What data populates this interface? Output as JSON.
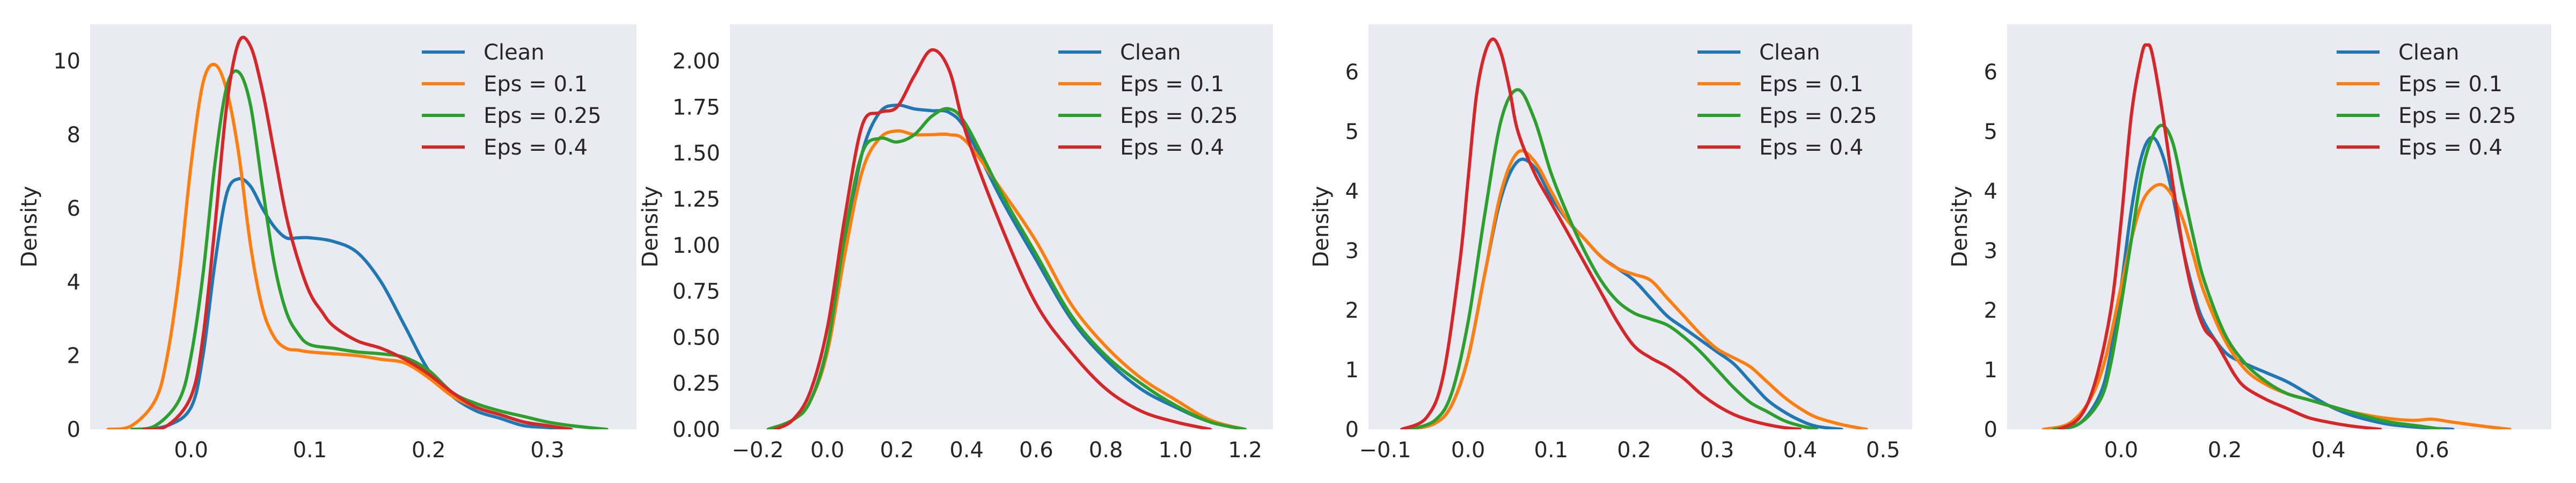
{
  "figure": {
    "background": "#ffffff",
    "axes_facecolor": "#eaeaf2",
    "text_color": "#262626",
    "colors": {
      "Clean": "#1f77b4",
      "Eps = 0.1": "#ff7f0e",
      "Eps = 0.25": "#2ca02c",
      "Eps = 0.4": "#d62728"
    }
  },
  "chart_data": [
    {
      "type": "line",
      "ylabel": "Density",
      "xlabel": "",
      "xlim": [
        -0.085,
        0.375
      ],
      "ylim": [
        0,
        11
      ],
      "xticks": [
        0.0,
        0.1,
        0.2,
        0.3
      ],
      "xtick_labels": [
        "0.0",
        "0.1",
        "0.2",
        "0.3"
      ],
      "yticks": [
        0,
        2,
        4,
        6,
        8,
        10
      ],
      "ytick_labels": [
        "0",
        "2",
        "4",
        "6",
        "8",
        "10"
      ],
      "grid": false,
      "legend": {
        "position": "top-right",
        "entries": [
          "Clean",
          "Eps = 0.1",
          "Eps = 0.25",
          "Eps = 0.4"
        ]
      },
      "series": [
        {
          "name": "Clean",
          "color": "#1f77b4",
          "x": [
            -0.045,
            -0.02,
            0.0,
            0.01,
            0.02,
            0.03,
            0.04,
            0.05,
            0.06,
            0.07,
            0.08,
            0.09,
            0.1,
            0.12,
            0.14,
            0.16,
            0.18,
            0.2,
            0.22,
            0.24,
            0.26,
            0.28,
            0.3,
            0.32
          ],
          "y": [
            0,
            0.1,
            0.6,
            2.0,
            4.5,
            6.4,
            6.8,
            6.6,
            6.0,
            5.5,
            5.2,
            5.2,
            5.2,
            5.1,
            4.8,
            4.0,
            2.8,
            1.6,
            0.9,
            0.5,
            0.3,
            0.1,
            0.05,
            0
          ]
        },
        {
          "name": "Eps = 0.1",
          "color": "#ff7f0e",
          "x": [
            -0.07,
            -0.05,
            -0.03,
            -0.02,
            -0.01,
            0.0,
            0.01,
            0.02,
            0.03,
            0.04,
            0.05,
            0.06,
            0.07,
            0.08,
            0.09,
            0.1,
            0.12,
            0.14,
            0.16,
            0.18,
            0.2,
            0.22,
            0.24,
            0.26,
            0.28,
            0.3,
            0.32
          ],
          "y": [
            0,
            0.1,
            0.8,
            2.0,
            4.2,
            7.2,
            9.4,
            9.9,
            9.2,
            7.5,
            5.0,
            3.3,
            2.5,
            2.2,
            2.15,
            2.1,
            2.05,
            2.0,
            1.9,
            1.8,
            1.4,
            0.9,
            0.6,
            0.4,
            0.2,
            0.1,
            0
          ]
        },
        {
          "name": "Eps = 0.25",
          "color": "#2ca02c",
          "x": [
            -0.05,
            -0.03,
            -0.01,
            0.0,
            0.01,
            0.02,
            0.03,
            0.04,
            0.05,
            0.06,
            0.07,
            0.08,
            0.09,
            0.1,
            0.12,
            0.14,
            0.16,
            0.18,
            0.2,
            0.22,
            0.24,
            0.26,
            0.28,
            0.3,
            0.32,
            0.35
          ],
          "y": [
            0,
            0.1,
            0.8,
            2.0,
            4.2,
            7.2,
            9.3,
            9.7,
            8.8,
            6.6,
            4.5,
            3.2,
            2.6,
            2.3,
            2.2,
            2.1,
            2.05,
            1.95,
            1.6,
            1.0,
            0.7,
            0.5,
            0.35,
            0.2,
            0.1,
            0
          ]
        },
        {
          "name": "Eps = 0.4",
          "color": "#d62728",
          "x": [
            -0.04,
            -0.02,
            0.0,
            0.01,
            0.02,
            0.03,
            0.04,
            0.05,
            0.06,
            0.07,
            0.08,
            0.09,
            0.1,
            0.11,
            0.12,
            0.14,
            0.16,
            0.18,
            0.2,
            0.22,
            0.24,
            0.26,
            0.28,
            0.3,
            0.32
          ],
          "y": [
            0,
            0.1,
            0.9,
            2.5,
            5.5,
            8.8,
            10.5,
            10.4,
            9.2,
            7.5,
            5.8,
            4.6,
            3.7,
            3.2,
            2.8,
            2.4,
            2.2,
            1.9,
            1.5,
            1.0,
            0.6,
            0.4,
            0.2,
            0.1,
            0
          ]
        }
      ]
    },
    {
      "type": "line",
      "ylabel": "Density",
      "xlabel": "",
      "xlim": [
        -0.28,
        1.28
      ],
      "ylim": [
        0,
        2.2
      ],
      "xticks": [
        -0.2,
        0.0,
        0.2,
        0.4,
        0.6,
        0.8,
        1.0,
        1.2
      ],
      "xtick_labels": [
        "−0.2",
        "0.0",
        "0.2",
        "0.4",
        "0.6",
        "0.8",
        "1.0",
        "1.2"
      ],
      "yticks": [
        0,
        0.25,
        0.5,
        0.75,
        1.0,
        1.25,
        1.5,
        1.75,
        2.0
      ],
      "ytick_labels": [
        "0.00",
        "0.25",
        "0.50",
        "0.75",
        "1.00",
        "1.25",
        "1.50",
        "1.75",
        "2.00"
      ],
      "grid": false,
      "legend": {
        "position": "top-right",
        "entries": [
          "Clean",
          "Eps = 0.1",
          "Eps = 0.25",
          "Eps = 0.4"
        ]
      },
      "series": [
        {
          "name": "Clean",
          "color": "#1f77b4",
          "x": [
            -0.17,
            -0.1,
            -0.05,
            0.0,
            0.05,
            0.1,
            0.15,
            0.2,
            0.25,
            0.3,
            0.35,
            0.4,
            0.5,
            0.6,
            0.7,
            0.8,
            0.9,
            1.0,
            1.1,
            1.2
          ],
          "y": [
            0,
            0.05,
            0.15,
            0.45,
            1.0,
            1.5,
            1.72,
            1.76,
            1.74,
            1.73,
            1.72,
            1.62,
            1.25,
            0.92,
            0.6,
            0.38,
            0.22,
            0.12,
            0.04,
            0
          ]
        },
        {
          "name": "Eps = 0.1",
          "color": "#ff7f0e",
          "x": [
            -0.17,
            -0.1,
            -0.05,
            0.0,
            0.05,
            0.1,
            0.15,
            0.2,
            0.25,
            0.3,
            0.35,
            0.4,
            0.5,
            0.6,
            0.7,
            0.8,
            0.9,
            1.0,
            1.1,
            1.2
          ],
          "y": [
            0,
            0.05,
            0.15,
            0.42,
            0.95,
            1.4,
            1.58,
            1.62,
            1.6,
            1.6,
            1.6,
            1.56,
            1.3,
            1.02,
            0.68,
            0.45,
            0.28,
            0.16,
            0.05,
            0
          ]
        },
        {
          "name": "Eps = 0.25",
          "color": "#2ca02c",
          "x": [
            -0.17,
            -0.1,
            -0.05,
            0.0,
            0.05,
            0.1,
            0.15,
            0.2,
            0.25,
            0.3,
            0.35,
            0.4,
            0.5,
            0.6,
            0.7,
            0.8,
            0.9,
            1.0,
            1.1,
            1.2
          ],
          "y": [
            0,
            0.05,
            0.15,
            0.45,
            1.05,
            1.5,
            1.58,
            1.56,
            1.6,
            1.7,
            1.74,
            1.65,
            1.28,
            0.95,
            0.62,
            0.4,
            0.25,
            0.13,
            0.04,
            0
          ]
        },
        {
          "name": "Eps = 0.4",
          "color": "#d62728",
          "x": [
            -0.15,
            -0.1,
            -0.05,
            0.0,
            0.05,
            0.1,
            0.15,
            0.2,
            0.25,
            0.3,
            0.35,
            0.4,
            0.5,
            0.6,
            0.7,
            0.8,
            0.9,
            1.0,
            1.1
          ],
          "y": [
            0,
            0.05,
            0.2,
            0.55,
            1.15,
            1.65,
            1.72,
            1.75,
            1.92,
            2.06,
            1.95,
            1.6,
            1.1,
            0.68,
            0.42,
            0.22,
            0.1,
            0.04,
            0
          ]
        }
      ]
    },
    {
      "type": "line",
      "ylabel": "Density",
      "xlabel": "",
      "xlim": [
        -0.12,
        0.535
      ],
      "ylim": [
        0,
        6.8
      ],
      "xticks": [
        -0.1,
        0.0,
        0.1,
        0.2,
        0.3,
        0.4,
        0.5
      ],
      "xtick_labels": [
        "−0.1",
        "0.0",
        "0.1",
        "0.2",
        "0.3",
        "0.4",
        "0.5"
      ],
      "yticks": [
        0,
        1,
        2,
        3,
        4,
        5,
        6
      ],
      "ytick_labels": [
        "0",
        "1",
        "2",
        "3",
        "4",
        "5",
        "6"
      ],
      "grid": false,
      "legend": {
        "position": "top-right",
        "entries": [
          "Clean",
          "Eps = 0.1",
          "Eps = 0.25",
          "Eps = 0.4"
        ]
      },
      "series": [
        {
          "name": "Clean",
          "color": "#1f77b4",
          "x": [
            -0.07,
            -0.04,
            -0.02,
            0.0,
            0.02,
            0.04,
            0.06,
            0.08,
            0.1,
            0.12,
            0.14,
            0.16,
            0.18,
            0.2,
            0.22,
            0.24,
            0.26,
            0.28,
            0.3,
            0.32,
            0.34,
            0.36,
            0.38,
            0.4,
            0.42,
            0.45
          ],
          "y": [
            0,
            0.1,
            0.4,
            1.2,
            2.6,
            3.9,
            4.5,
            4.4,
            3.9,
            3.5,
            3.2,
            2.9,
            2.7,
            2.5,
            2.2,
            1.9,
            1.7,
            1.5,
            1.3,
            1.1,
            0.8,
            0.5,
            0.3,
            0.15,
            0.05,
            0
          ]
        },
        {
          "name": "Eps = 0.1",
          "color": "#ff7f0e",
          "x": [
            -0.07,
            -0.04,
            -0.02,
            0.0,
            0.02,
            0.04,
            0.06,
            0.08,
            0.1,
            0.12,
            0.14,
            0.16,
            0.18,
            0.2,
            0.22,
            0.24,
            0.26,
            0.28,
            0.3,
            0.32,
            0.34,
            0.36,
            0.38,
            0.4,
            0.42,
            0.45,
            0.48
          ],
          "y": [
            0,
            0.1,
            0.4,
            1.2,
            2.6,
            4.0,
            4.65,
            4.5,
            4.0,
            3.5,
            3.2,
            2.9,
            2.7,
            2.6,
            2.5,
            2.2,
            1.9,
            1.6,
            1.35,
            1.2,
            1.05,
            0.8,
            0.55,
            0.35,
            0.2,
            0.08,
            0
          ]
        },
        {
          "name": "Eps = 0.25",
          "color": "#2ca02c",
          "x": [
            -0.07,
            -0.04,
            -0.02,
            0.0,
            0.02,
            0.04,
            0.06,
            0.08,
            0.1,
            0.12,
            0.14,
            0.16,
            0.18,
            0.2,
            0.22,
            0.24,
            0.26,
            0.28,
            0.3,
            0.32,
            0.34,
            0.36,
            0.38,
            0.4,
            0.42
          ],
          "y": [
            0,
            0.15,
            0.6,
            1.8,
            3.6,
            5.2,
            5.7,
            5.2,
            4.3,
            3.6,
            3.0,
            2.5,
            2.15,
            1.95,
            1.85,
            1.75,
            1.55,
            1.3,
            1.0,
            0.7,
            0.45,
            0.3,
            0.15,
            0.06,
            0
          ]
        },
        {
          "name": "Eps = 0.4",
          "color": "#d62728",
          "x": [
            -0.08,
            -0.05,
            -0.03,
            -0.01,
            0.0,
            0.01,
            0.02,
            0.03,
            0.04,
            0.05,
            0.06,
            0.08,
            0.1,
            0.12,
            0.14,
            0.16,
            0.18,
            0.2,
            0.22,
            0.24,
            0.26,
            0.28,
            0.3,
            0.32,
            0.34,
            0.36,
            0.38,
            0.4
          ],
          "y": [
            0,
            0.2,
            0.9,
            2.8,
            4.2,
            5.6,
            6.3,
            6.55,
            6.3,
            5.7,
            5.0,
            4.3,
            3.8,
            3.3,
            2.8,
            2.3,
            1.8,
            1.4,
            1.2,
            1.05,
            0.85,
            0.6,
            0.4,
            0.25,
            0.15,
            0.08,
            0.03,
            0
          ]
        }
      ]
    },
    {
      "type": "line",
      "ylabel": "Density",
      "xlabel": "",
      "xlim": [
        -0.22,
        0.83
      ],
      "ylim": [
        0,
        6.8
      ],
      "xticks": [
        0.0,
        0.2,
        0.4,
        0.6
      ],
      "xtick_labels": [
        "0.0",
        "0.2",
        "0.4",
        "0.6"
      ],
      "yticks": [
        0,
        1,
        2,
        3,
        4,
        5,
        6
      ],
      "ytick_labels": [
        "0",
        "1",
        "2",
        "3",
        "4",
        "5",
        "6"
      ],
      "grid": false,
      "legend": {
        "position": "top-right",
        "entries": [
          "Clean",
          "Eps = 0.1",
          "Eps = 0.25",
          "Eps = 0.4"
        ]
      },
      "series": [
        {
          "name": "Clean",
          "color": "#1f77b4",
          "x": [
            -0.13,
            -0.08,
            -0.04,
            -0.02,
            0.0,
            0.02,
            0.04,
            0.06,
            0.08,
            0.1,
            0.12,
            0.14,
            0.16,
            0.2,
            0.24,
            0.28,
            0.32,
            0.36,
            0.4,
            0.44,
            0.48,
            0.52,
            0.58,
            0.64
          ],
          "y": [
            0,
            0.1,
            0.6,
            1.3,
            2.4,
            3.7,
            4.6,
            4.9,
            4.6,
            3.9,
            3.0,
            2.3,
            1.8,
            1.3,
            1.1,
            0.95,
            0.8,
            0.6,
            0.4,
            0.25,
            0.15,
            0.08,
            0.03,
            0
          ]
        },
        {
          "name": "Eps = 0.1",
          "color": "#ff7f0e",
          "x": [
            -0.15,
            -0.1,
            -0.06,
            -0.03,
            0.0,
            0.02,
            0.04,
            0.06,
            0.08,
            0.1,
            0.12,
            0.14,
            0.16,
            0.2,
            0.24,
            0.28,
            0.32,
            0.36,
            0.4,
            0.44,
            0.5,
            0.56,
            0.6,
            0.64,
            0.7,
            0.75
          ],
          "y": [
            0,
            0.1,
            0.5,
            1.2,
            2.4,
            3.2,
            3.8,
            4.05,
            4.1,
            3.9,
            3.5,
            2.9,
            2.3,
            1.5,
            1.0,
            0.75,
            0.6,
            0.5,
            0.4,
            0.3,
            0.2,
            0.15,
            0.17,
            0.12,
            0.05,
            0
          ]
        },
        {
          "name": "Eps = 0.25",
          "color": "#2ca02c",
          "x": [
            -0.13,
            -0.08,
            -0.04,
            -0.02,
            0.0,
            0.02,
            0.04,
            0.06,
            0.08,
            0.1,
            0.12,
            0.14,
            0.16,
            0.2,
            0.24,
            0.28,
            0.32,
            0.36,
            0.4,
            0.44,
            0.48,
            0.52,
            0.58,
            0.62
          ],
          "y": [
            0,
            0.1,
            0.5,
            1.1,
            2.1,
            3.2,
            4.3,
            4.9,
            5.1,
            4.8,
            4.0,
            3.2,
            2.5,
            1.6,
            1.1,
            0.8,
            0.6,
            0.5,
            0.4,
            0.3,
            0.2,
            0.12,
            0.05,
            0
          ]
        },
        {
          "name": "Eps = 0.4",
          "color": "#d62728",
          "x": [
            -0.12,
            -0.08,
            -0.05,
            -0.02,
            0.0,
            0.02,
            0.04,
            0.05,
            0.06,
            0.08,
            0.1,
            0.12,
            0.14,
            0.16,
            0.18,
            0.2,
            0.22,
            0.24,
            0.28,
            0.32,
            0.36,
            0.4,
            0.44,
            0.48,
            0.5
          ],
          "y": [
            0,
            0.2,
            0.8,
            2.0,
            3.5,
            5.3,
            6.3,
            6.45,
            6.3,
            5.3,
            4.1,
            3.0,
            2.2,
            1.7,
            1.5,
            1.2,
            0.9,
            0.7,
            0.5,
            0.35,
            0.2,
            0.12,
            0.06,
            0.02,
            0
          ]
        }
      ]
    }
  ]
}
